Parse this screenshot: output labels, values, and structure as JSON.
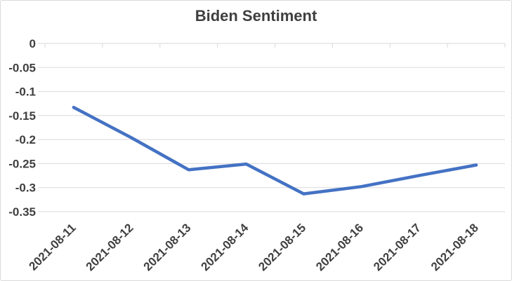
{
  "chart_data": {
    "type": "line",
    "title": "Biden Sentiment",
    "categories": [
      "2021-08-11",
      "2021-08-12",
      "2021-08-13",
      "2021-08-14",
      "2021-08-15",
      "2021-08-16",
      "2021-08-17",
      "2021-08-18"
    ],
    "series": [
      {
        "name": "Biden Sentiment",
        "values": [
          -0.133,
          -0.196,
          -0.263,
          -0.251,
          -0.313,
          -0.298,
          -0.275,
          -0.253
        ]
      }
    ],
    "xlabel": "",
    "ylabel": "",
    "ylim": [
      -0.35,
      0
    ],
    "y_tick_values": [
      0,
      -0.05,
      -0.1,
      -0.15,
      -0.2,
      -0.25,
      -0.3,
      -0.35
    ],
    "y_tick_labels": [
      "0",
      "-0.05",
      "-0.1",
      "-0.15",
      "-0.2",
      "-0.25",
      "-0.3",
      "-0.35"
    ],
    "grid": true,
    "legend": "none",
    "x_tick_rotation_deg": 45,
    "colors": {
      "line": "#4472C4",
      "gridline": "#D9D9D9",
      "text": "#404040",
      "border": "#D9D9D9",
      "background": "#FFFFFF"
    }
  }
}
